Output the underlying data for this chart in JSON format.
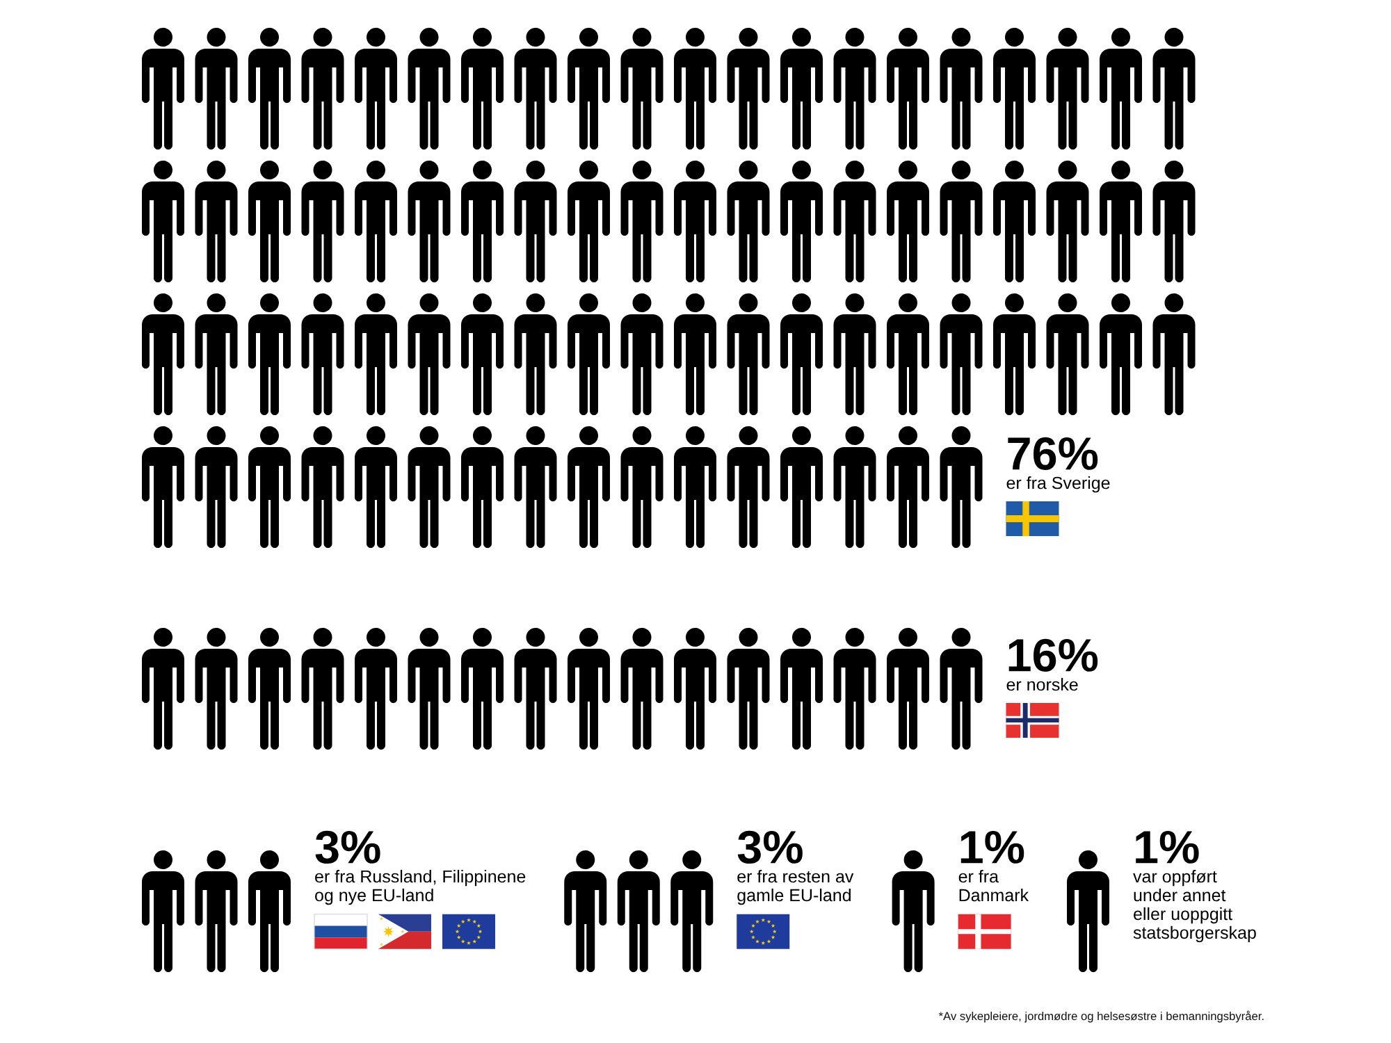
{
  "chart_data": {
    "type": "other",
    "categories": [
      "er fra Sverige",
      "er norske",
      "er fra Russland, Filippinene\nog nye EU-land",
      "er fra resten av\ngamle EU-land",
      "er fra\nDanmark",
      "var oppført\nunder annet\neller uoppgitt\nstatsborgerskap"
    ],
    "values": [
      76,
      16,
      3,
      3,
      1,
      1
    ],
    "value_labels": [
      "76%",
      "16%",
      "3%",
      "3%",
      "1%",
      "1%"
    ],
    "color": "#000000",
    "annotations": [
      "*Av sykepleiere, jordmødre og helsesøstre i bemanningsbyråer."
    ]
  }
}
